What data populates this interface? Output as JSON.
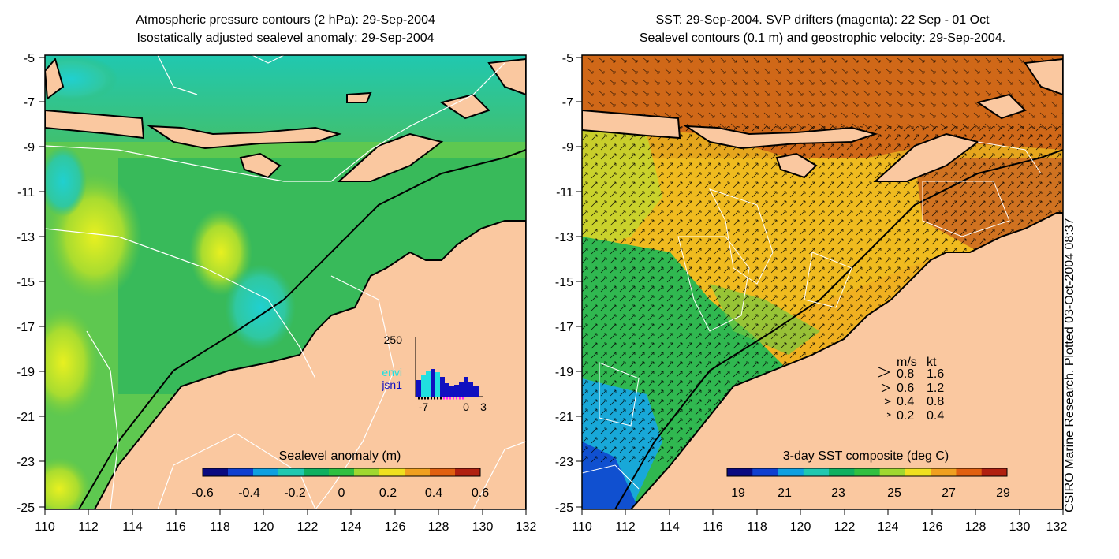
{
  "left_panel": {
    "title_line1": "Atmospheric pressure contours (2 hPa): 29-Sep-2004",
    "title_line2": "Isostatically adjusted sealevel anomaly: 29-Sep-2004",
    "y_ticks": [
      "-5",
      "-7",
      "-9",
      "-11",
      "-13",
      "-15",
      "-17",
      "-19",
      "-21",
      "-23",
      "-25"
    ],
    "x_ticks": [
      "110",
      "112",
      "114",
      "116",
      "118",
      "120",
      "122",
      "124",
      "126",
      "128",
      "130",
      "132"
    ],
    "colorbar": {
      "label": "Sealevel anomaly (m)",
      "ticks": [
        "-0.6",
        "-0.4",
        "-0.2",
        "0",
        "0.2",
        "0.4",
        "0.6"
      ],
      "colors": [
        "#0a0a80",
        "#1040d0",
        "#10a0e0",
        "#20c8b0",
        "#10b060",
        "#30c040",
        "#a0d830",
        "#f0e020",
        "#f0a020",
        "#e06010",
        "#b02010"
      ]
    },
    "inset": {
      "y_label": "250",
      "x_ticks": [
        "-7",
        "0",
        "3"
      ],
      "legend": [
        {
          "label": "envi",
          "color": "#20e0e0"
        },
        {
          "label": "jsn1",
          "color": "#1010c0"
        }
      ]
    }
  },
  "right_panel": {
    "title_line1": "SST: 29-Sep-2004. SVP drifters (magenta): 22 Sep - 01 Oct",
    "title_line2": "Sealevel contours (0.1 m) and geostrophic velocity: 29-Sep-2004.",
    "y_ticks": [
      "-5",
      "-7",
      "-9",
      "-11",
      "-13",
      "-15",
      "-17",
      "-19",
      "-21",
      "-23",
      "-25"
    ],
    "x_ticks": [
      "110",
      "112",
      "114",
      "116",
      "118",
      "120",
      "122",
      "124",
      "126",
      "128",
      "130",
      "132"
    ],
    "colorbar": {
      "label": "3-day SST composite (deg C)",
      "ticks": [
        "19",
        "21",
        "23",
        "25",
        "27",
        "29"
      ],
      "colors": [
        "#0a0a80",
        "#1040d0",
        "#10a0e0",
        "#20c8b0",
        "#10b060",
        "#30c040",
        "#a0d830",
        "#f0e020",
        "#f0a020",
        "#e06010",
        "#b02010"
      ]
    },
    "velocity_legend": {
      "header_ms": "m/s",
      "header_kt": "kt",
      "rows": [
        {
          "ms": "0.8",
          "kt": "1.6"
        },
        {
          "ms": "0.6",
          "kt": "1.2"
        },
        {
          "ms": "0.4",
          "kt": "0.8"
        },
        {
          "ms": "0.2",
          "kt": "0.4"
        }
      ]
    }
  },
  "credit": "CSIRO Marine Research. Plotted 03-Oct-2004 08:37",
  "colors": {
    "land": "#fac8a0",
    "frame": "#000000",
    "contour": "#ffffff"
  }
}
